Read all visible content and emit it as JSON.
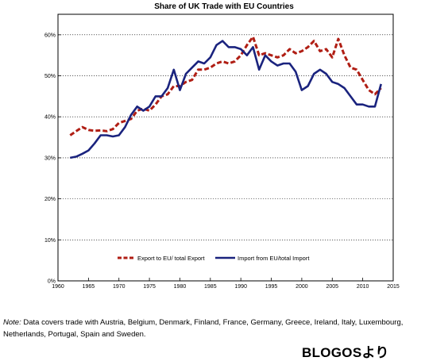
{
  "chart_data": {
    "type": "line",
    "title": "Share of UK Trade with EU Countries",
    "xlim": [
      1960,
      2015
    ],
    "ylim": [
      0,
      65
    ],
    "xticks": [
      1960,
      1965,
      1970,
      1975,
      1980,
      1985,
      1990,
      1995,
      2000,
      2005,
      2010,
      2015
    ],
    "yticks": [
      0,
      10,
      20,
      30,
      40,
      50,
      60
    ],
    "ytick_labels": [
      "0%",
      "10%",
      "20%",
      "30%",
      "40%",
      "50%",
      "60%"
    ],
    "grid": "horizontal dotted",
    "legend_position": "bottom-center",
    "series": [
      {
        "name": "Export to EU/ total Export",
        "color": "#b01e14",
        "style": "dashed",
        "x": [
          1962,
          1963,
          1964,
          1965,
          1966,
          1967,
          1968,
          1969,
          1970,
          1971,
          1972,
          1973,
          1974,
          1975,
          1976,
          1977,
          1978,
          1979,
          1980,
          1981,
          1982,
          1983,
          1984,
          1985,
          1986,
          1987,
          1988,
          1989,
          1990,
          1991,
          1992,
          1993,
          1994,
          1995,
          1996,
          1997,
          1998,
          1999,
          2000,
          2001,
          2002,
          2003,
          2004,
          2005,
          2006,
          2007,
          2008,
          2009,
          2010,
          2011,
          2012,
          2013
        ],
        "y": [
          35.5,
          36.5,
          37.5,
          36.8,
          36.6,
          36.7,
          36.5,
          37.0,
          38.5,
          39.0,
          39.5,
          41.5,
          42.0,
          41.5,
          43.0,
          45.0,
          45.5,
          47.5,
          47.5,
          48.5,
          49.0,
          51.5,
          51.5,
          52.0,
          53.0,
          53.5,
          53.0,
          53.5,
          55.0,
          57.5,
          59.5,
          55.0,
          55.5,
          55.0,
          54.5,
          55.0,
          56.5,
          55.5,
          56.0,
          57.0,
          58.5,
          56.0,
          56.5,
          54.5,
          59.0,
          55.0,
          52.0,
          51.5,
          49.0,
          46.5,
          45.5,
          47.0
        ]
      },
      {
        "name": "Import from EU/total Import",
        "color": "#1a237e",
        "style": "solid",
        "x": [
          1962,
          1963,
          1964,
          1965,
          1966,
          1967,
          1968,
          1969,
          1970,
          1971,
          1972,
          1973,
          1974,
          1975,
          1976,
          1977,
          1978,
          1979,
          1980,
          1981,
          1982,
          1983,
          1984,
          1985,
          1986,
          1987,
          1988,
          1989,
          1990,
          1991,
          1992,
          1993,
          1994,
          1995,
          1996,
          1997,
          1998,
          1999,
          2000,
          2001,
          2002,
          2003,
          2004,
          2005,
          2006,
          2007,
          2008,
          2009,
          2010,
          2011,
          2012,
          2013
        ],
        "y": [
          30.0,
          30.3,
          31.0,
          31.8,
          33.5,
          35.5,
          35.5,
          35.2,
          35.5,
          37.5,
          40.5,
          42.5,
          41.5,
          42.5,
          45.0,
          45.0,
          47.0,
          51.5,
          46.5,
          50.5,
          52.0,
          53.5,
          53.0,
          54.5,
          57.5,
          58.5,
          57.0,
          57.0,
          56.5,
          55.0,
          57.0,
          51.5,
          55.0,
          53.5,
          52.5,
          53.0,
          53.0,
          51.0,
          46.5,
          47.5,
          50.5,
          51.5,
          50.5,
          48.5,
          48.0,
          47.0,
          45.0,
          43.0,
          43.0,
          42.5,
          42.5,
          48.0
        ]
      }
    ]
  },
  "note": {
    "label": "Note:",
    "text": " Data covers trade with Austria, Belgium, Denmark, Finland, France, Germany, Greece, Ireland, Italy, Luxembourg, Netherlands, Portugal, Spain and Sweden."
  },
  "source": "BLOGOSより"
}
